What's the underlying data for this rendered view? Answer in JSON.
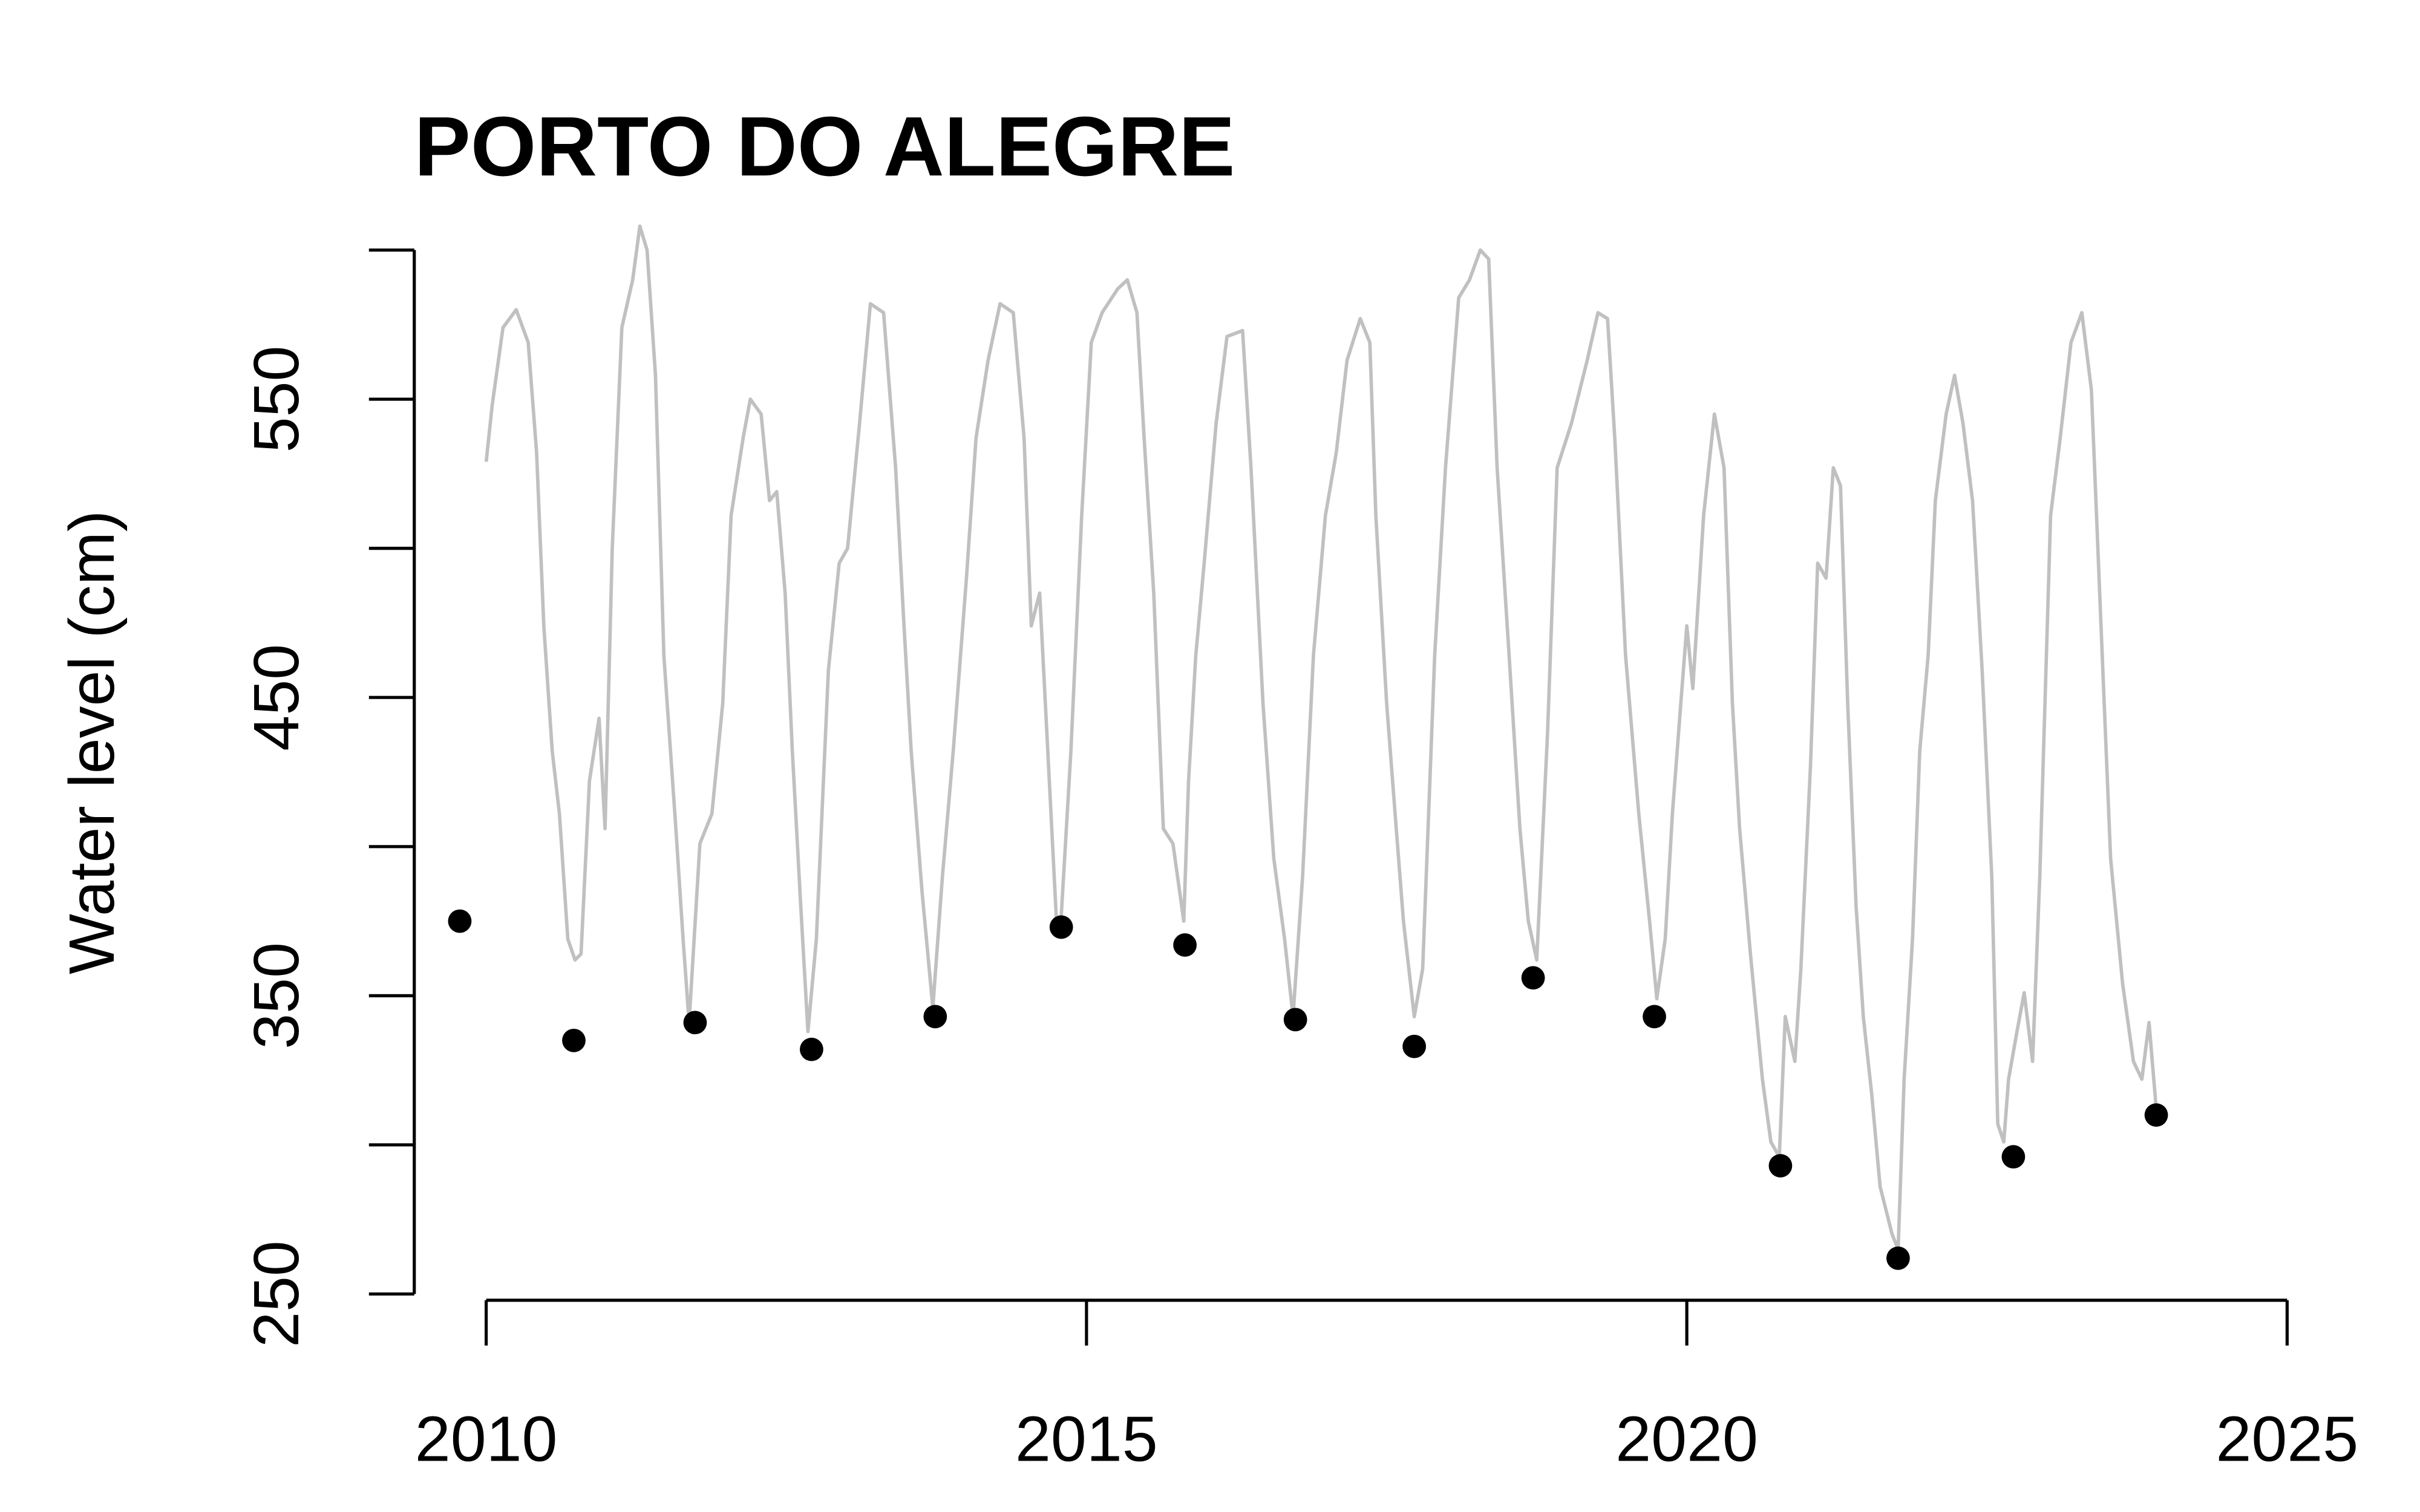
{
  "chart_data": {
    "type": "line",
    "title": "PORTO DO ALEGRE",
    "y_label": "Water level (cm)",
    "xlim": [
      2010,
      2025
    ],
    "xticks": [
      2010,
      2015,
      2020,
      2025
    ],
    "ylim": [
      250,
      600
    ],
    "yticks": [
      250,
      {
        "value": 300,
        "label": null
      },
      350,
      {
        "value": 400,
        "label": null
      },
      450,
      {
        "value": 500,
        "label": null
      },
      550,
      {
        "value": 600,
        "label": null
      }
    ],
    "line": {
      "color": "#c0c0c0",
      "x": [
        2010.0,
        2010.05,
        2010.14,
        2010.25,
        2010.35,
        2010.42,
        2010.48,
        2010.55,
        2010.61,
        2010.68,
        2010.74,
        2010.79,
        2010.86,
        2010.94,
        2010.99,
        2011.05,
        2011.13,
        2011.22,
        2011.28,
        2011.34,
        2011.41,
        2011.48,
        2011.58,
        2011.64,
        2011.69,
        2011.78,
        2011.88,
        2011.97,
        2012.04,
        2012.14,
        2012.2,
        2012.29,
        2012.36,
        2012.42,
        2012.49,
        2012.55,
        2012.62,
        2012.68,
        2012.75,
        2012.85,
        2012.94,
        2013.01,
        2013.11,
        2013.2,
        2013.31,
        2013.41,
        2013.48,
        2013.54,
        2013.63,
        2013.72,
        2013.8,
        2013.89,
        2014.0,
        2014.08,
        2014.18,
        2014.28,
        2014.39,
        2014.48,
        2014.54,
        2014.61,
        2014.67,
        2014.75,
        2014.79,
        2014.87,
        2014.96,
        2015.04,
        2015.13,
        2015.26,
        2015.34,
        2015.42,
        2015.48,
        2015.56,
        2015.64,
        2015.72,
        2015.81,
        2015.85,
        2015.91,
        2015.98,
        2016.08,
        2016.17,
        2016.3,
        2016.37,
        2016.47,
        2016.56,
        2016.65,
        2016.72,
        2016.8,
        2016.89,
        2016.99,
        2017.08,
        2017.17,
        2017.28,
        2017.36,
        2017.41,
        2017.5,
        2017.58,
        2017.64,
        2017.73,
        2017.8,
        2017.9,
        2017.99,
        2018.1,
        2018.19,
        2018.28,
        2018.35,
        2018.42,
        2018.52,
        2018.61,
        2018.68,
        2018.75,
        2018.84,
        2018.92,
        2019.04,
        2019.17,
        2019.26,
        2019.34,
        2019.4,
        2019.49,
        2019.6,
        2019.69,
        2019.75,
        2019.82,
        2019.88,
        2019.95,
        2020.0,
        2020.05,
        2020.14,
        2020.23,
        2020.31,
        2020.38,
        2020.44,
        2020.53,
        2020.63,
        2020.7,
        2020.77,
        2020.82,
        2020.9,
        2020.95,
        2021.03,
        2021.09,
        2021.16,
        2021.22,
        2021.28,
        2021.34,
        2021.41,
        2021.47,
        2021.54,
        2021.61,
        2021.71,
        2021.76,
        2021.81,
        2021.88,
        2021.94,
        2022.01,
        2022.07,
        2022.16,
        2022.23,
        2022.3,
        2022.38,
        2022.46,
        2022.54,
        2022.59,
        2022.64,
        2022.68,
        2022.75,
        2022.81,
        2022.88,
        2022.94,
        2023.03,
        2023.11,
        2023.2,
        2023.29,
        2023.37,
        2023.45,
        2023.53,
        2023.63,
        2023.72,
        2023.79,
        2023.85,
        2023.91
      ],
      "values": [
        529,
        548,
        574,
        580,
        569,
        532,
        474,
        432,
        411,
        369,
        362,
        364,
        422,
        443,
        406,
        500,
        574,
        590,
        608,
        600,
        558,
        464,
        406,
        369,
        341,
        401,
        411,
        448,
        511,
        537,
        550,
        545,
        516,
        519,
        485,
        432,
        380,
        338,
        369,
        459,
        495,
        500,
        542,
        582,
        579,
        527,
        474,
        432,
        385,
        346,
        390,
        432,
        490,
        537,
        563,
        582,
        579,
        537,
        474,
        485,
        438,
        375,
        377,
        432,
        511,
        569,
        579,
        587,
        590,
        579,
        537,
        485,
        406,
        401,
        375,
        422,
        464,
        495,
        542,
        571,
        573,
        527,
        448,
        396,
        369,
        343,
        390,
        464,
        511,
        532,
        563,
        577,
        569,
        511,
        448,
        406,
        375,
        343,
        359,
        464,
        527,
        584,
        590,
        600,
        597,
        527,
        464,
        406,
        375,
        362,
        438,
        527,
        542,
        563,
        579,
        577,
        537,
        464,
        411,
        375,
        349,
        369,
        411,
        448,
        474,
        453,
        511,
        545,
        527,
        448,
        406,
        364,
        322,
        301,
        296,
        343,
        328,
        359,
        427,
        495,
        490,
        527,
        521,
        448,
        380,
        343,
        317,
        286,
        270,
        265,
        322,
        369,
        432,
        464,
        516,
        545,
        558,
        542,
        516,
        459,
        390,
        307,
        301,
        322,
        338,
        351,
        328,
        390,
        511,
        537,
        569,
        579,
        553,
        474,
        396,
        354,
        328,
        322,
        341,
        312
      ]
    },
    "points": {
      "color": "#000000",
      "x": [
        2009.78,
        2010.73,
        2011.74,
        2012.71,
        2013.74,
        2014.79,
        2015.82,
        2016.74,
        2017.73,
        2018.72,
        2019.73,
        2020.78,
        2021.76,
        2022.72,
        2023.91
      ],
      "values": [
        375,
        335,
        341,
        332,
        343,
        373,
        367,
        342,
        333,
        356,
        343,
        293,
        262,
        296,
        310
      ]
    }
  }
}
